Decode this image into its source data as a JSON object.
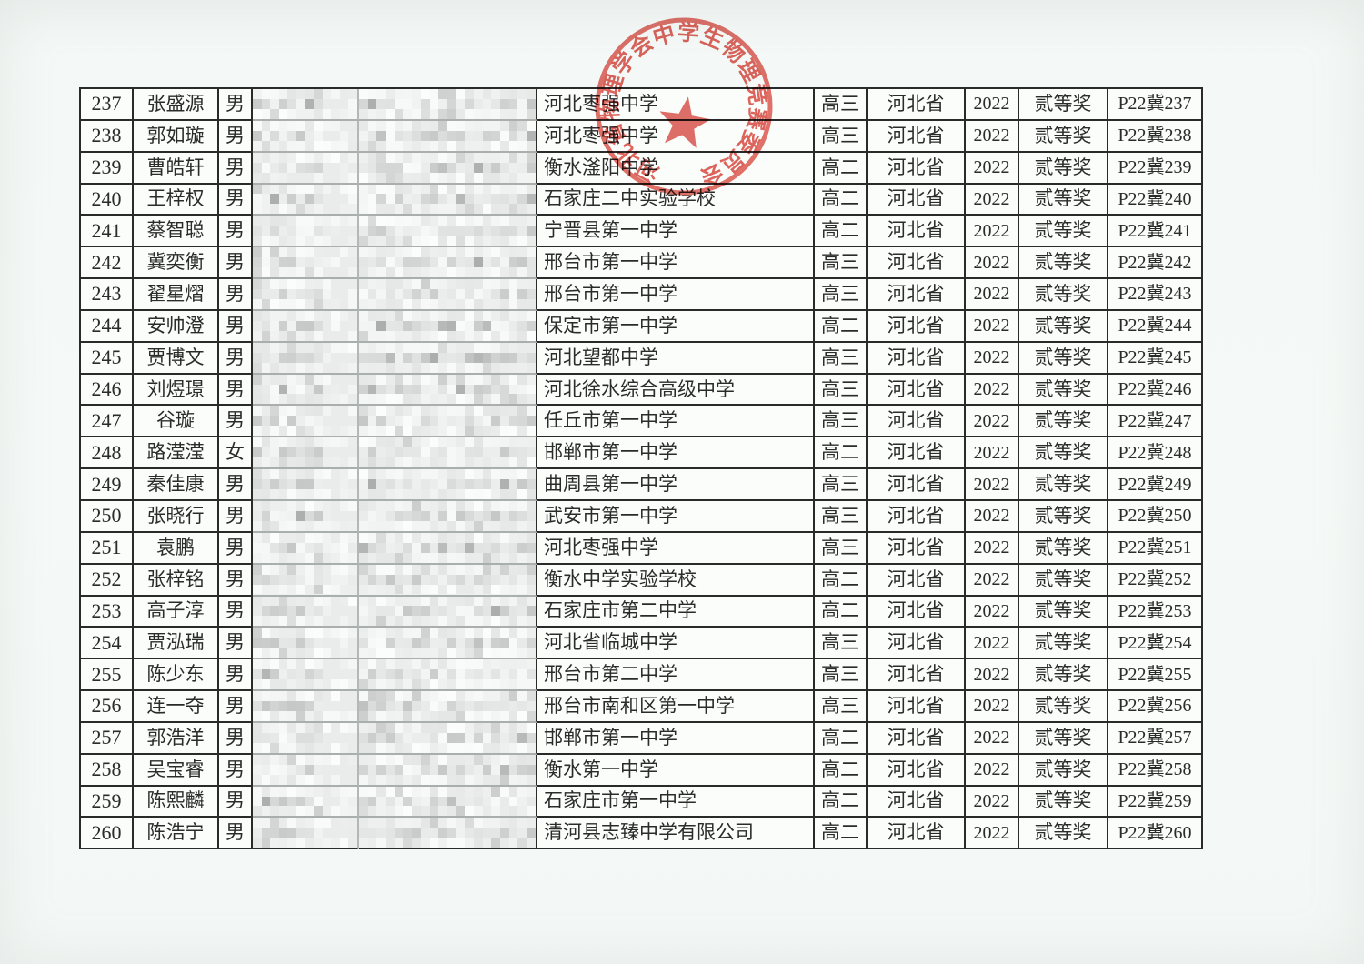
{
  "stamp": {
    "ring_text": "河北省物理学会中学生物理竞赛委员会",
    "star_icon": "red-five-pointed-star",
    "color": "#dc4f46"
  },
  "table": {
    "column_order": [
      "no",
      "name",
      "gender",
      "redacted1",
      "redacted2",
      "school",
      "grade",
      "province",
      "year",
      "award",
      "cert"
    ],
    "redacted_columns": [
      "redacted1",
      "redacted2"
    ],
    "rows": [
      {
        "no": "237",
        "name": "张盛源",
        "gender": "男",
        "school": "河北枣强中学",
        "grade": "高三",
        "province": "河北省",
        "year": "2022",
        "award": "贰等奖",
        "cert": "P22冀237"
      },
      {
        "no": "238",
        "name": "郭如璇",
        "gender": "男",
        "school": "河北枣强中学",
        "grade": "高三",
        "province": "河北省",
        "year": "2022",
        "award": "贰等奖",
        "cert": "P22冀238"
      },
      {
        "no": "239",
        "name": "曹皓轩",
        "gender": "男",
        "school": "衡水滏阳中学",
        "grade": "高二",
        "province": "河北省",
        "year": "2022",
        "award": "贰等奖",
        "cert": "P22冀239"
      },
      {
        "no": "240",
        "name": "王梓权",
        "gender": "男",
        "school": "石家庄二中实验学校",
        "grade": "高二",
        "province": "河北省",
        "year": "2022",
        "award": "贰等奖",
        "cert": "P22冀240"
      },
      {
        "no": "241",
        "name": "蔡智聪",
        "gender": "男",
        "school": "宁晋县第一中学",
        "grade": "高二",
        "province": "河北省",
        "year": "2022",
        "award": "贰等奖",
        "cert": "P22冀241"
      },
      {
        "no": "242",
        "name": "冀奕衡",
        "gender": "男",
        "school": "邢台市第一中学",
        "grade": "高三",
        "province": "河北省",
        "year": "2022",
        "award": "贰等奖",
        "cert": "P22冀242"
      },
      {
        "no": "243",
        "name": "翟星熠",
        "gender": "男",
        "school": "邢台市第一中学",
        "grade": "高三",
        "province": "河北省",
        "year": "2022",
        "award": "贰等奖",
        "cert": "P22冀243"
      },
      {
        "no": "244",
        "name": "安帅澄",
        "gender": "男",
        "school": "保定市第一中学",
        "grade": "高二",
        "province": "河北省",
        "year": "2022",
        "award": "贰等奖",
        "cert": "P22冀244"
      },
      {
        "no": "245",
        "name": "贾博文",
        "gender": "男",
        "school": "河北望都中学",
        "grade": "高三",
        "province": "河北省",
        "year": "2022",
        "award": "贰等奖",
        "cert": "P22冀245"
      },
      {
        "no": "246",
        "name": "刘煜璟",
        "gender": "男",
        "school": "河北徐水综合高级中学",
        "grade": "高三",
        "province": "河北省",
        "year": "2022",
        "award": "贰等奖",
        "cert": "P22冀246"
      },
      {
        "no": "247",
        "name": "谷璇",
        "gender": "男",
        "school": "任丘市第一中学",
        "grade": "高三",
        "province": "河北省",
        "year": "2022",
        "award": "贰等奖",
        "cert": "P22冀247"
      },
      {
        "no": "248",
        "name": "路滢滢",
        "gender": "女",
        "school": "邯郸市第一中学",
        "grade": "高二",
        "province": "河北省",
        "year": "2022",
        "award": "贰等奖",
        "cert": "P22冀248"
      },
      {
        "no": "249",
        "name": "秦佳康",
        "gender": "男",
        "school": "曲周县第一中学",
        "grade": "高三",
        "province": "河北省",
        "year": "2022",
        "award": "贰等奖",
        "cert": "P22冀249"
      },
      {
        "no": "250",
        "name": "张晓行",
        "gender": "男",
        "school": "武安市第一中学",
        "grade": "高三",
        "province": "河北省",
        "year": "2022",
        "award": "贰等奖",
        "cert": "P22冀250"
      },
      {
        "no": "251",
        "name": "袁鹏",
        "gender": "男",
        "school": "河北枣强中学",
        "grade": "高三",
        "province": "河北省",
        "year": "2022",
        "award": "贰等奖",
        "cert": "P22冀251"
      },
      {
        "no": "252",
        "name": "张梓铭",
        "gender": "男",
        "school": "衡水中学实验学校",
        "grade": "高二",
        "province": "河北省",
        "year": "2022",
        "award": "贰等奖",
        "cert": "P22冀252"
      },
      {
        "no": "253",
        "name": "高子淳",
        "gender": "男",
        "school": "石家庄市第二中学",
        "grade": "高二",
        "province": "河北省",
        "year": "2022",
        "award": "贰等奖",
        "cert": "P22冀253"
      },
      {
        "no": "254",
        "name": "贾泓瑞",
        "gender": "男",
        "school": "河北省临城中学",
        "grade": "高三",
        "province": "河北省",
        "year": "2022",
        "award": "贰等奖",
        "cert": "P22冀254"
      },
      {
        "no": "255",
        "name": "陈少东",
        "gender": "男",
        "school": "邢台市第二中学",
        "grade": "高三",
        "province": "河北省",
        "year": "2022",
        "award": "贰等奖",
        "cert": "P22冀255"
      },
      {
        "no": "256",
        "name": "连一夺",
        "gender": "男",
        "school": "邢台市南和区第一中学",
        "grade": "高三",
        "province": "河北省",
        "year": "2022",
        "award": "贰等奖",
        "cert": "P22冀256"
      },
      {
        "no": "257",
        "name": "郭浩洋",
        "gender": "男",
        "school": "邯郸市第一中学",
        "grade": "高二",
        "province": "河北省",
        "year": "2022",
        "award": "贰等奖",
        "cert": "P22冀257"
      },
      {
        "no": "258",
        "name": "吴宝睿",
        "gender": "男",
        "school": "衡水第一中学",
        "grade": "高二",
        "province": "河北省",
        "year": "2022",
        "award": "贰等奖",
        "cert": "P22冀258"
      },
      {
        "no": "259",
        "name": "陈熙麟",
        "gender": "男",
        "school": "石家庄市第一中学",
        "grade": "高二",
        "province": "河北省",
        "year": "2022",
        "award": "贰等奖",
        "cert": "P22冀259"
      },
      {
        "no": "260",
        "name": "陈浩宁",
        "gender": "男",
        "school": "清河县志臻中学有限公司",
        "grade": "高二",
        "province": "河北省",
        "year": "2022",
        "award": "贰等奖",
        "cert": "P22冀260"
      }
    ]
  },
  "colors": {
    "paper": "#f3f7f5",
    "cell_background": "#fbfdfb",
    "table_line": "#2a2a2a",
    "redaction_line": "#a9afad",
    "redaction_base": "#eef1f0",
    "stamp_red": "#dc4f46",
    "text": "#2b2b2b"
  }
}
